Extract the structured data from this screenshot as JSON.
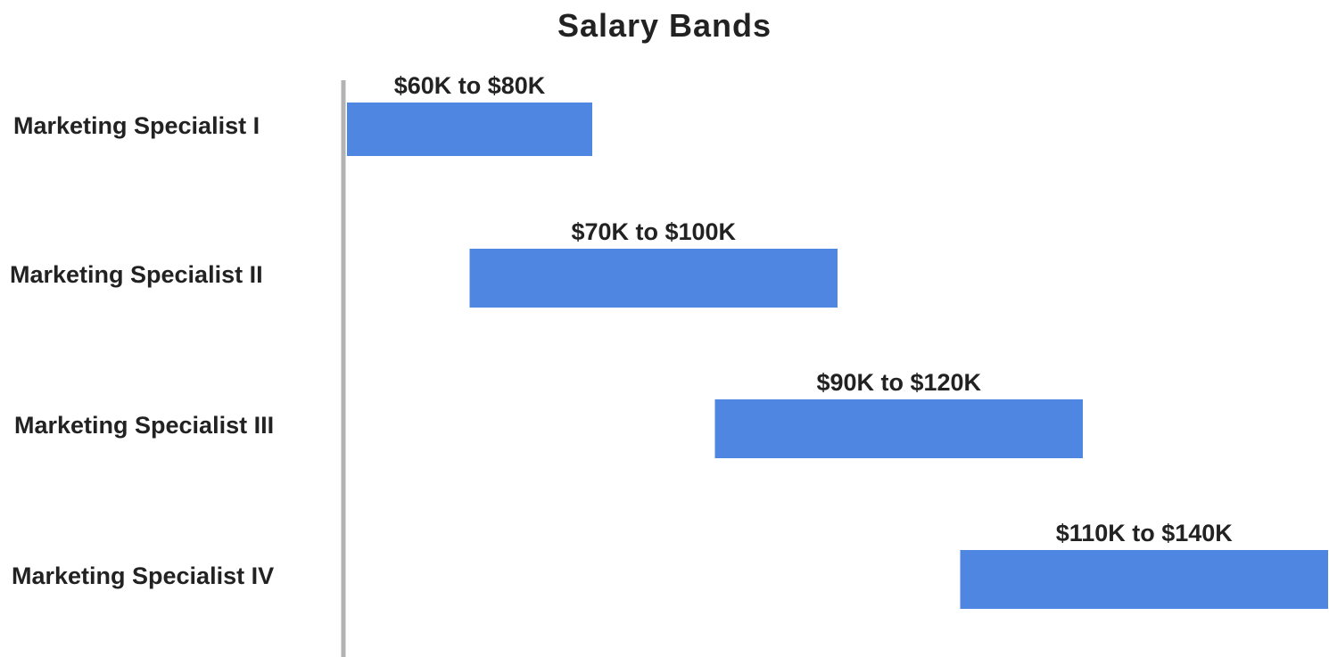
{
  "chart_data": {
    "type": "bar",
    "subtype": "floating-range-horizontal",
    "title": "Salary Bands",
    "xlabel": "",
    "ylabel": "",
    "categories": [
      "Marketing Specialist I",
      "Marketing Specialist II",
      "Marketing Specialist III",
      "Marketing Specialist IV"
    ],
    "ranges": [
      {
        "category": "Marketing Specialist I",
        "low": 60,
        "high": 80,
        "label": "$60K to $80K"
      },
      {
        "category": "Marketing Specialist II",
        "low": 70,
        "high": 100,
        "label": "$70K to $100K"
      },
      {
        "category": "Marketing Specialist III",
        "low": 90,
        "high": 120,
        "label": "$90K to $120K"
      },
      {
        "category": "Marketing Specialist IV",
        "low": 110,
        "high": 140,
        "label": "$110K to $140K"
      }
    ],
    "xlim": [
      60,
      140
    ],
    "unit": "$K",
    "grid": false,
    "legend": "none",
    "bar_color": "#4F86E1",
    "axis_color": "#B3B3B3"
  }
}
